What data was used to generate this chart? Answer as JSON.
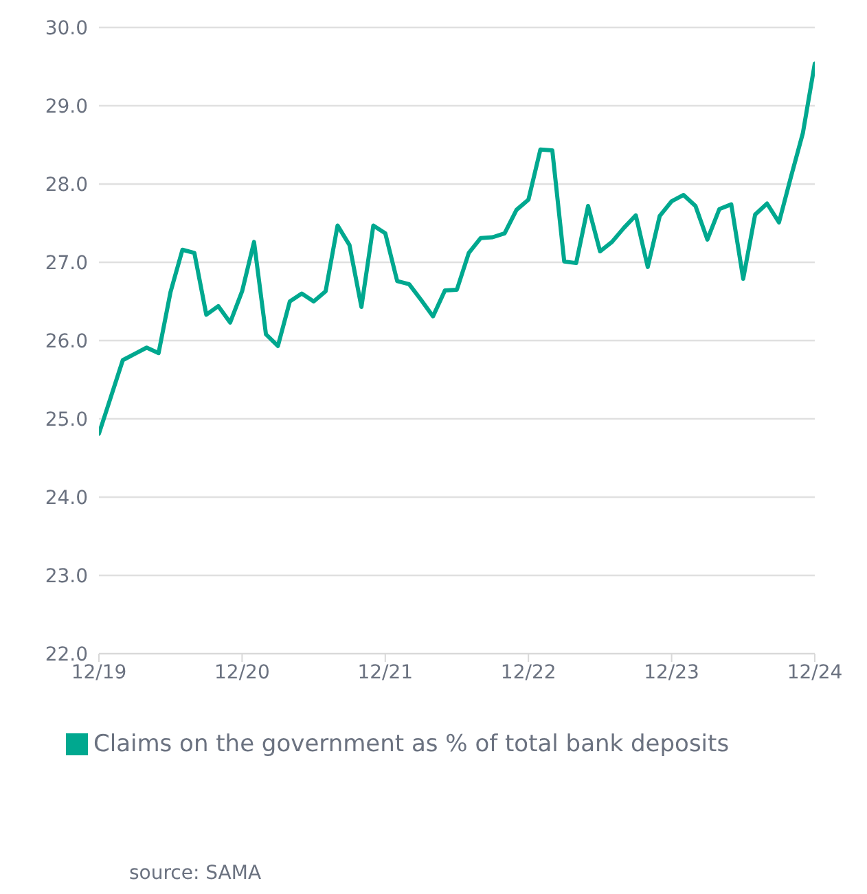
{
  "chart_data": {
    "type": "line",
    "x": [
      "2019-12",
      "2020-01",
      "2020-02",
      "2020-03",
      "2020-04",
      "2020-05",
      "2020-06",
      "2020-07",
      "2020-08",
      "2020-09",
      "2020-10",
      "2020-11",
      "2020-12",
      "2021-01",
      "2021-02",
      "2021-03",
      "2021-04",
      "2021-05",
      "2021-06",
      "2021-07",
      "2021-08",
      "2021-09",
      "2021-10",
      "2021-11",
      "2021-12",
      "2022-01",
      "2022-02",
      "2022-03",
      "2022-04",
      "2022-05",
      "2022-06",
      "2022-07",
      "2022-08",
      "2022-09",
      "2022-10",
      "2022-11",
      "2022-12",
      "2023-01",
      "2023-02",
      "2023-03",
      "2023-04",
      "2023-05",
      "2023-06",
      "2023-07",
      "2023-08",
      "2023-09",
      "2023-10",
      "2023-11",
      "2023-12",
      "2024-01",
      "2024-02",
      "2024-03",
      "2024-04",
      "2024-05",
      "2024-06",
      "2024-07",
      "2024-08",
      "2024-09",
      "2024-10",
      "2024-11",
      "2024-12"
    ],
    "series": [
      {
        "name": "Claims on  the government as % of total bank deposits",
        "color": "#00a88f",
        "values": [
          24.81,
          25.28,
          25.75,
          25.83,
          25.91,
          25.84,
          26.62,
          27.16,
          27.12,
          26.33,
          26.44,
          26.23,
          26.63,
          27.26,
          26.08,
          25.93,
          26.5,
          26.6,
          26.5,
          26.63,
          27.47,
          27.22,
          26.43,
          27.47,
          27.37,
          26.76,
          26.72,
          26.52,
          26.31,
          26.64,
          26.65,
          27.12,
          27.31,
          27.32,
          27.37,
          27.67,
          27.8,
          28.44,
          28.43,
          27.01,
          26.99,
          27.72,
          27.14,
          27.26,
          27.44,
          27.6,
          26.94,
          27.59,
          27.78,
          27.86,
          27.72,
          27.29,
          27.68,
          27.74,
          26.79,
          27.61,
          27.75,
          27.51,
          28.09,
          28.65,
          29.54
        ]
      }
    ],
    "xlim": [
      "2019-12",
      "2024-12"
    ],
    "xticks": [
      {
        "value": "2019-12",
        "label": "12/19"
      },
      {
        "value": "2020-12",
        "label": "12/20"
      },
      {
        "value": "2021-12",
        "label": "12/21"
      },
      {
        "value": "2022-12",
        "label": "12/22"
      },
      {
        "value": "2023-12",
        "label": "12/23"
      },
      {
        "value": "2024-12",
        "label": "12/24"
      }
    ],
    "ylim": [
      22,
      30
    ],
    "yticks": [
      {
        "value": 22,
        "label": "22.0"
      },
      {
        "value": 23,
        "label": "23.0"
      },
      {
        "value": 24,
        "label": "24.0"
      },
      {
        "value": 25,
        "label": "25.0"
      },
      {
        "value": 26,
        "label": "26.0"
      },
      {
        "value": 27,
        "label": "27.0"
      },
      {
        "value": 28,
        "label": "28.0"
      },
      {
        "value": 29,
        "label": "29.0"
      },
      {
        "value": 30,
        "label": "30.0"
      }
    ],
    "grid": "y",
    "legend": "bottom",
    "marker": "none",
    "line_style": "solid",
    "annotations": [
      "source: SAMA"
    ]
  }
}
